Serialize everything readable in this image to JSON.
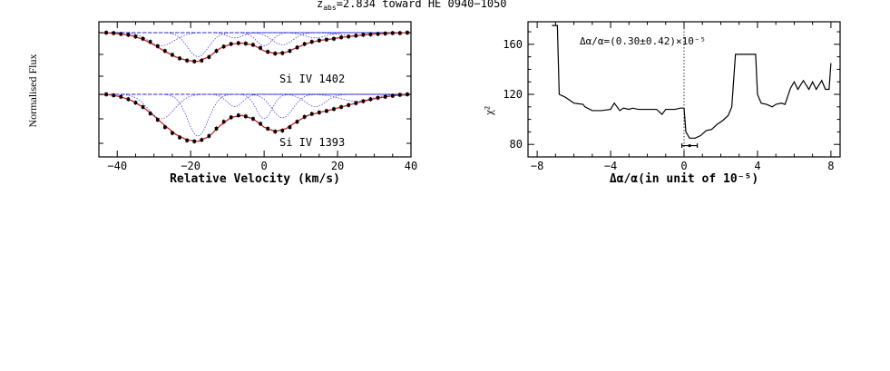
{
  "figure_title": "z",
  "figure_title_sub": "abs",
  "figure_title_rest": "=2.834 toward HE 0940−1050",
  "chart_data": [
    {
      "type": "line",
      "xlabel": "Relative Velocity (km/s)",
      "ylabel": "Normalised Flux",
      "xlim": [
        -45,
        40
      ],
      "xticks": [
        -40,
        -20,
        0,
        20,
        40
      ],
      "xtick_labels": [
        "−40",
        "−20",
        "0",
        "20",
        "40"
      ],
      "grid": false,
      "panels": [
        {
          "label": "Si IV 1402",
          "continuum": 1.0,
          "ylim": [
            0.0,
            1.05
          ],
          "model_x": [
            -45,
            -42,
            -39,
            -36,
            -33,
            -30,
            -27,
            -24,
            -21,
            -18,
            -15,
            -12,
            -9,
            -6,
            -3,
            0,
            3,
            6,
            9,
            12,
            15,
            18,
            21,
            24,
            27,
            30,
            33,
            36,
            39,
            40
          ],
          "model_y": [
            1.0,
            0.99,
            0.97,
            0.93,
            0.85,
            0.72,
            0.57,
            0.44,
            0.36,
            0.34,
            0.45,
            0.64,
            0.74,
            0.76,
            0.72,
            0.58,
            0.52,
            0.55,
            0.66,
            0.76,
            0.82,
            0.85,
            0.89,
            0.92,
            0.95,
            0.97,
            0.98,
            0.99,
            1.0,
            1.0
          ],
          "data_x": [
            -43,
            -41,
            -39,
            -37,
            -35,
            -33,
            -31,
            -29,
            -27,
            -25,
            -23,
            -21,
            -19,
            -17,
            -15,
            -13,
            -11,
            -9,
            -7,
            -5,
            -3,
            -1,
            1,
            3,
            5,
            7,
            9,
            11,
            13,
            15,
            17,
            19,
            21,
            23,
            25,
            27,
            29,
            31,
            33,
            35,
            37,
            39
          ],
          "data_y": [
            1.0,
            0.99,
            0.97,
            0.95,
            0.91,
            0.86,
            0.79,
            0.69,
            0.58,
            0.49,
            0.41,
            0.36,
            0.34,
            0.36,
            0.44,
            0.58,
            0.68,
            0.74,
            0.76,
            0.75,
            0.72,
            0.65,
            0.56,
            0.52,
            0.53,
            0.58,
            0.66,
            0.74,
            0.79,
            0.82,
            0.84,
            0.86,
            0.89,
            0.91,
            0.93,
            0.95,
            0.96,
            0.97,
            0.98,
            0.99,
            0.99,
            1.0
          ],
          "components": [
            {
              "center": -28,
              "depth": 0.3,
              "width": 5
            },
            {
              "center": -18,
              "depth": 0.55,
              "width": 4
            },
            {
              "center": -8,
              "depth": 0.12,
              "width": 3
            },
            {
              "center": 0,
              "depth": 0.3,
              "width": 3
            },
            {
              "center": 5,
              "depth": 0.28,
              "width": 4
            },
            {
              "center": 14,
              "depth": 0.12,
              "width": 4
            },
            {
              "center": 25,
              "depth": 0.07,
              "width": 6
            }
          ]
        },
        {
          "label": "Si IV 1393",
          "continuum": 1.0,
          "ylim": [
            0.0,
            1.05
          ],
          "model_x": [
            -45,
            -42,
            -39,
            -36,
            -33,
            -30,
            -27,
            -24,
            -21,
            -18,
            -15,
            -12,
            -9,
            -6,
            -3,
            0,
            3,
            6,
            9,
            12,
            15,
            18,
            21,
            24,
            27,
            30,
            33,
            36,
            39,
            40
          ],
          "model_y": [
            1.0,
            0.99,
            0.95,
            0.87,
            0.74,
            0.56,
            0.36,
            0.18,
            0.07,
            0.04,
            0.14,
            0.36,
            0.53,
            0.57,
            0.5,
            0.33,
            0.24,
            0.3,
            0.45,
            0.57,
            0.63,
            0.68,
            0.74,
            0.8,
            0.86,
            0.91,
            0.95,
            0.98,
            0.99,
            1.0
          ],
          "data_x": [
            -43,
            -41,
            -39,
            -37,
            -35,
            -33,
            -31,
            -29,
            -27,
            -25,
            -23,
            -21,
            -19,
            -17,
            -15,
            -13,
            -11,
            -9,
            -7,
            -5,
            -3,
            -1,
            1,
            3,
            5,
            7,
            9,
            11,
            13,
            15,
            17,
            19,
            21,
            23,
            25,
            27,
            29,
            31,
            33,
            35,
            37,
            39
          ],
          "data_y": [
            1.0,
            0.98,
            0.95,
            0.9,
            0.83,
            0.74,
            0.61,
            0.48,
            0.33,
            0.21,
            0.12,
            0.06,
            0.04,
            0.07,
            0.15,
            0.3,
            0.44,
            0.53,
            0.57,
            0.55,
            0.5,
            0.4,
            0.3,
            0.24,
            0.26,
            0.33,
            0.44,
            0.54,
            0.6,
            0.63,
            0.66,
            0.7,
            0.74,
            0.78,
            0.82,
            0.86,
            0.9,
            0.93,
            0.95,
            0.97,
            0.99,
            1.0
          ],
          "components": [
            {
              "center": -28,
              "depth": 0.5,
              "width": 5
            },
            {
              "center": -18,
              "depth": 0.85,
              "width": 4
            },
            {
              "center": -8,
              "depth": 0.25,
              "width": 3
            },
            {
              "center": 0,
              "depth": 0.5,
              "width": 3
            },
            {
              "center": 5,
              "depth": 0.48,
              "width": 4
            },
            {
              "center": 14,
              "depth": 0.25,
              "width": 4
            },
            {
              "center": 25,
              "depth": 0.14,
              "width": 6
            }
          ]
        }
      ],
      "colors": {
        "model": "#d62020",
        "data": "#000000",
        "components": "#2a2ad0"
      }
    },
    {
      "type": "line",
      "xlabel": "Δα/α(in unit of 10⁻⁵)",
      "ylabel": "χ²",
      "xlim": [
        -8.5,
        8.5
      ],
      "ylim": [
        70,
        178
      ],
      "xticks": [
        -8,
        -4,
        0,
        4,
        8
      ],
      "xtick_labels": [
        "−8",
        "−4",
        "0",
        "4",
        "8"
      ],
      "yticks": [
        80,
        120,
        160
      ],
      "ytick_labels": [
        "80",
        "120",
        "160"
      ],
      "annotation": "Δα/α=(0.30±0.42)×10⁻⁵",
      "best_fit": 0.3,
      "error": 0.42,
      "error_bar_y": 79,
      "reference_x": 0,
      "grid": false,
      "x": [
        -7.2,
        -6.9,
        -6.8,
        -6.5,
        -6.4,
        -6.0,
        -5.5,
        -5.4,
        -5.0,
        -4.5,
        -4.0,
        -3.8,
        -3.5,
        -3.3,
        -3.0,
        -2.8,
        -2.5,
        -2.2,
        -2.0,
        -1.5,
        -1.2,
        -1.0,
        -0.8,
        -0.5,
        -0.2,
        0.0,
        0.1,
        0.3,
        0.6,
        0.9,
        1.2,
        1.5,
        1.8,
        2.1,
        2.4,
        2.6,
        2.8,
        3.0,
        3.3,
        3.6,
        3.9,
        4.0,
        4.2,
        4.5,
        4.8,
        5.0,
        5.3,
        5.5,
        5.8,
        6.0,
        6.2,
        6.5,
        6.8,
        7.0,
        7.2,
        7.5,
        7.7,
        7.9,
        8.0
      ],
      "y": [
        175,
        175,
        120,
        118,
        117,
        113,
        112,
        110,
        107,
        107,
        108,
        113,
        107,
        109,
        108,
        109,
        108,
        108,
        108,
        108,
        104,
        108,
        108,
        108,
        109,
        109,
        90,
        85,
        85,
        87,
        91,
        92,
        96,
        99,
        103,
        110,
        152,
        152,
        152,
        152,
        152,
        120,
        113,
        112,
        110,
        112,
        113,
        112,
        125,
        130,
        124,
        131,
        124,
        130,
        124,
        131,
        124,
        124,
        145
      ]
    }
  ]
}
